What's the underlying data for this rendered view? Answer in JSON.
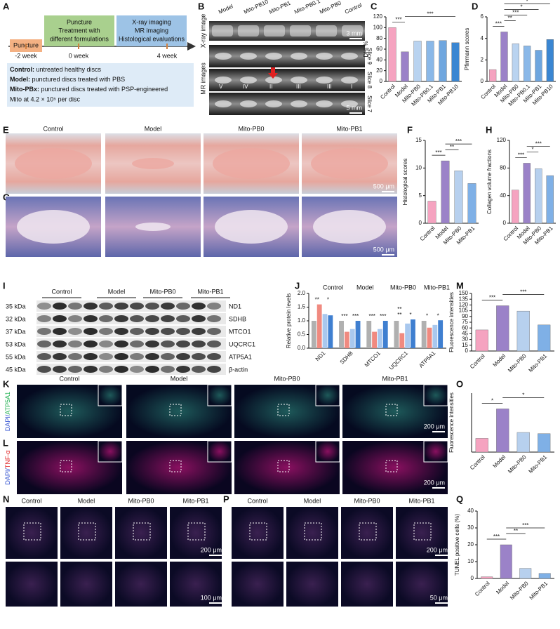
{
  "panel_labels": [
    "A",
    "B",
    "C",
    "D",
    "E",
    "F",
    "G",
    "H",
    "I",
    "J",
    "K",
    "L",
    "M",
    "N",
    "O",
    "P",
    "Q"
  ],
  "timeline": {
    "steps": [
      {
        "lines": [
          "Puncture"
        ]
      },
      {
        "lines": [
          "Puncture",
          "Treatment with",
          "different formulations"
        ]
      },
      {
        "lines": [
          "X-ray imaging",
          "MR imaging",
          "Histological evaluations"
        ]
      }
    ],
    "weeks": [
      "-2 week",
      "0 week",
      "4 week"
    ],
    "groups_box": [
      {
        "key": "Control:",
        "text": " untreated healthy discs"
      },
      {
        "key": "Model:",
        "text": " punctured discs treated with PBS"
      },
      {
        "key": "Mito-PBx:",
        "text": " punctured discs treated with PSP-engineered",
        "text2": "Mito at 4.2 × 10⁵ per disc"
      }
    ]
  },
  "imaging": {
    "columns": [
      "Model",
      "Mito-PB10",
      "Mito-PB1",
      "Mito-PB0.1",
      "Mito-PB0",
      "Control"
    ],
    "xray_label": "X-ray image",
    "mr_label": "MR images",
    "scale_xray": "3 mm",
    "scale_mr": "5 mm",
    "slices": [
      "Slice 9",
      "Slice 8",
      "Slice 7"
    ],
    "levels": [
      "V",
      "IV",
      "II",
      "III",
      "III",
      "I"
    ]
  },
  "histology": {
    "columns": [
      "Control",
      "Model",
      "Mito-PB0",
      "Mito-PB1"
    ],
    "scales": [
      "500 μm",
      "500 μm"
    ]
  },
  "western_blot": {
    "groups": [
      "Control",
      "Model",
      "Mito-PB0",
      "Mito-PB1"
    ],
    "rows": [
      {
        "kda": "35 kDa",
        "protein": "ND1"
      },
      {
        "kda": "32 kDa",
        "protein": "SDHB"
      },
      {
        "kda": "37 kDa",
        "protein": "MTCO1"
      },
      {
        "kda": "53 kDa",
        "protein": "UQCRC1"
      },
      {
        "kda": "55 kDa",
        "protein": "ATP5A1"
      },
      {
        "kda": "45 kDa",
        "protein": "β-actin"
      }
    ]
  },
  "fluorescence": {
    "columns": [
      "Control",
      "Model",
      "Mito-PB0",
      "Mito-PB1"
    ],
    "stain_k": [
      "DAPI/",
      "ATP5A1"
    ],
    "stain_l": [
      "DAPI/",
      "TNF-α"
    ],
    "scale_k": "200 μm",
    "scale_l": "200 μm"
  },
  "tunel": {
    "n_columns": [
      "Control",
      "Model",
      "Mito-PB0",
      "Mito-PB1"
    ],
    "p_columns": [
      "Control",
      "Model",
      "Mito-PB0",
      "Mito-PB1"
    ],
    "n_scales": [
      "200 μm",
      "100 μm"
    ],
    "p_scales": [
      "200 μm",
      "50 μm"
    ]
  },
  "chart_data": [
    {
      "type": "bar",
      "ylabel": "DHI %",
      "categories": [
        "Control",
        "Model",
        "Mito-PB0",
        "Mito-PB0.1",
        "Mito-PB1",
        "Mito-PB10"
      ],
      "values": [
        100,
        55,
        75,
        75,
        76,
        72
      ],
      "colors": [
        "#f5a3c0",
        "#9b82c8",
        "#b9d3f0",
        "#8ab8e8",
        "#6ea6df",
        "#3a86d2"
      ],
      "ylim": [
        0,
        120
      ],
      "yticks": [
        0,
        20,
        40,
        60,
        80,
        100,
        120
      ],
      "annotations": [
        "***",
        "***"
      ]
    },
    {
      "type": "bar",
      "ylabel": "Pfirrmann scores",
      "categories": [
        "Control",
        "Model",
        "Mito-PB0",
        "Mito-PB0.1",
        "Mito-PB1",
        "Mito-PB10"
      ],
      "values": [
        1.1,
        4.6,
        3.5,
        3.3,
        2.9,
        3.9
      ],
      "colors": [
        "#f5a3c0",
        "#9b82c8",
        "#b9d3f0",
        "#8ab8e8",
        "#6ea6df",
        "#3a86d2"
      ],
      "ylim": [
        0,
        6
      ],
      "yticks": [
        0,
        2,
        4,
        6
      ],
      "annotations": [
        "***",
        "**",
        "***",
        "*",
        "*"
      ]
    },
    {
      "type": "bar",
      "ylabel": "Histological scores",
      "categories": [
        "Control",
        "Model",
        "Mito-PB0",
        "Mito-PB1"
      ],
      "values": [
        4,
        11.3,
        9.5,
        7.2
      ],
      "colors": [
        "#f5a3c0",
        "#9b82c8",
        "#b7d0ee",
        "#7fb0e6"
      ],
      "ylim": [
        0,
        15
      ],
      "yticks": [
        0,
        5,
        10,
        15
      ],
      "annotations": [
        "***",
        "**",
        "***"
      ]
    },
    {
      "type": "bar",
      "ylabel": "Collagen volume fractions",
      "categories": [
        "Control",
        "Model",
        "Mito-PB0",
        "Mito-PB1"
      ],
      "values": [
        48,
        87,
        79,
        69
      ],
      "colors": [
        "#f5a3c0",
        "#9b82c8",
        "#b7d0ee",
        "#7fb0e6"
      ],
      "ylim": [
        0,
        120
      ],
      "yticks": [
        0,
        40,
        80,
        120
      ],
      "annotations": [
        "***",
        "*",
        "***"
      ]
    },
    {
      "type": "grouped",
      "ylabel": "Relative protein levels",
      "categories": [
        "ND1",
        "SDHB",
        "MTCO1",
        "UQCRC1",
        "ATP5A1"
      ],
      "series": [
        {
          "name": "Control",
          "color": "#b0b0b0",
          "values": [
            1,
            1,
            1,
            1,
            1
          ]
        },
        {
          "name": "Model",
          "color": "#f08a80",
          "values": [
            1.6,
            0.6,
            0.6,
            0.55,
            0.75
          ]
        },
        {
          "name": "Mito-PB0",
          "color": "#a9c8ee",
          "values": [
            1.25,
            0.7,
            0.7,
            0.9,
            0.85
          ]
        },
        {
          "name": "Mito-PB1",
          "color": "#3f7fd0",
          "values": [
            1.2,
            1.0,
            1.0,
            1.05,
            1.02
          ]
        }
      ],
      "ylim": [
        0,
        2
      ],
      "yticks": [
        {
          "value": 0,
          "label": "0.0"
        },
        0.5,
        {
          "value": 1,
          "label": "1.0"
        },
        1.5,
        {
          "value": 2,
          "label": "2.0"
        }
      ],
      "annotations": [
        [
          "**",
          "*"
        ],
        [
          "***",
          "***"
        ],
        [
          "***",
          "***"
        ],
        [
          "**",
          "*",
          "**"
        ],
        [
          "*",
          "*"
        ]
      ]
    },
    {
      "type": "bar",
      "ylabel": "Fluorescence intensities",
      "categories": [
        "Control",
        "Model",
        "Mito-PB0",
        "Mito-PB1"
      ],
      "values": [
        55,
        118,
        104,
        68
      ],
      "colors": [
        "#f5a3c0",
        "#9b82c8",
        "#b7d0ee",
        "#7fb0e6"
      ],
      "ylim": [
        0,
        150
      ],
      "yticks": [
        0,
        15,
        30,
        45,
        60,
        75,
        90,
        105,
        120,
        135,
        150
      ],
      "annotations": [
        "***",
        "***"
      ]
    },
    {
      "type": "bar",
      "ylabel": "Fluorescence intensities",
      "categories": [
        "Control",
        "Model",
        "Mito-PB0",
        "Mito-PB1"
      ],
      "values": [
        35,
        110,
        50,
        47
      ],
      "colors": [
        "#f5a3c0",
        "#9b82c8",
        "#b7d0ee",
        "#7fb0e6"
      ],
      "ylim": [
        0,
        150
      ],
      "annotations": [
        "*",
        "*"
      ]
    },
    {
      "type": "bar",
      "ylabel": "TUNEL positive cells (%)",
      "categories": [
        "Control",
        "Model",
        "Mito-PB0",
        "Mito-PB1"
      ],
      "values": [
        1,
        20,
        6,
        3
      ],
      "colors": [
        "#f5a3c0",
        "#9b82c8",
        "#b7d0ee",
        "#7fb0e6"
      ],
      "ylim": [
        0,
        40
      ],
      "yticks": [
        0,
        10,
        20,
        30,
        40
      ],
      "annotations": [
        "***",
        "**",
        "***"
      ]
    }
  ]
}
